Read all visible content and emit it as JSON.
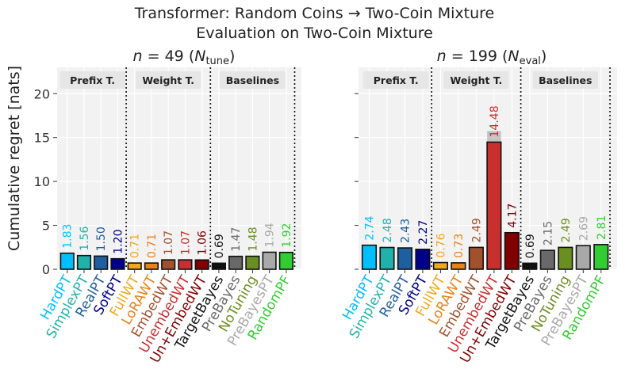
{
  "figure": {
    "title_line1": "Transformer: Random Coins → Two-Coin Mixture",
    "title_line2": "Evaluation on Two-Coin Mixture",
    "ylabel": "Cumulative regret [nats]"
  },
  "chart_data": [
    {
      "type": "bar",
      "title": "n = 49 (N_tune)",
      "ylabel": "Cumulative regret [nats]",
      "ylim": [
        0,
        23
      ],
      "yticks": [
        0,
        5,
        10,
        15,
        20
      ],
      "grid": true,
      "groups": [
        "Prefix T.",
        "Weight T.",
        "Baselines"
      ],
      "categories": [
        "HardPT",
        "SimplexPT",
        "RealPT",
        "SoftPT",
        "FullWT",
        "LoRAWT",
        "EmbedWT",
        "UnembedWT",
        "Un+EmbedWT",
        "TargetBayes",
        "PreBayes",
        "NoTuning",
        "PreBayesPT",
        "RandomPF"
      ],
      "values": [
        1.83,
        1.56,
        1.5,
        1.2,
        0.71,
        0.71,
        1.07,
        1.07,
        1.06,
        0.69,
        1.47,
        1.48,
        1.94,
        1.92
      ],
      "labels": [
        "1.83",
        "1.56",
        "1.50",
        "1.20",
        "0.71",
        "0.71",
        "1.07",
        "1.07",
        "1.06",
        "0.69",
        "1.47",
        "1.48",
        "1.94",
        "1.92"
      ]
    },
    {
      "type": "bar",
      "title": "n = 199 (N_eval)",
      "ylabel": "",
      "ylim": [
        0,
        23
      ],
      "yticks": [
        0,
        5,
        10,
        15,
        20
      ],
      "grid": true,
      "groups": [
        "Prefix T.",
        "Weight T.",
        "Baselines"
      ],
      "categories": [
        "HardPT",
        "SimplexPT",
        "RealPT",
        "SoftPT",
        "FullWT",
        "LoRAWT",
        "EmbedWT",
        "UnembedWT",
        "Un+EmbedWT",
        "TargetBayes",
        "PreBayes",
        "NoTuning",
        "PreBayesPT",
        "RandomPF"
      ],
      "values": [
        2.74,
        2.48,
        2.43,
        2.27,
        0.76,
        0.73,
        2.49,
        14.48,
        4.17,
        0.69,
        2.15,
        2.49,
        2.69,
        2.81
      ],
      "labels": [
        "2.74",
        "2.48",
        "2.43",
        "2.27",
        "0.76",
        "0.73",
        "2.49",
        "14.48",
        "4.17",
        "0.69",
        "2.15",
        "2.49",
        "2.69",
        "2.81"
      ]
    }
  ],
  "subplots": [
    {
      "title_var": "n",
      "title_eq": " = ",
      "title_num": "49",
      "title_paren_open": " (",
      "title_sym": "N",
      "title_sub": "tune",
      "title_paren_close": ")"
    },
    {
      "title_var": "n",
      "title_eq": " = ",
      "title_num": "199",
      "title_paren_open": " (",
      "title_sym": "N",
      "title_sub": "eval",
      "title_paren_close": ")"
    }
  ],
  "colors": {
    "bars": [
      "#00bfff",
      "#20b2aa",
      "#1f5fa0",
      "#00008b",
      "#f0a81e",
      "#e8821a",
      "#a0522d",
      "#c83030",
      "#800000",
      "#111111",
      "#696969",
      "#6b8e23",
      "#a9a9a9",
      "#32cd32"
    ],
    "labels": [
      "#00bfff",
      "#20b2aa",
      "#1f5fa0",
      "#00008b",
      "#f0a81e",
      "#e8821a",
      "#a0522d",
      "#c83030",
      "#800000",
      "#111111",
      "#696969",
      "#6b8e23",
      "#a9a9a9",
      "#32cd32"
    ],
    "panel_bg": "#f2f2f2",
    "grid": "#ffffff"
  }
}
